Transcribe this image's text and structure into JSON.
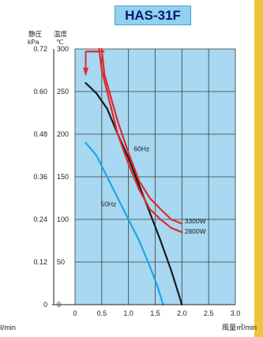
{
  "title": "HAS-31F",
  "chart_data": {
    "type": "line",
    "title": "HAS-31F",
    "y_left": {
      "header_top": "静圧",
      "header_unit": "kPa",
      "ticks": [
        0,
        0.12,
        0.24,
        0.36,
        0.48,
        0.6,
        0.72
      ],
      "tick_labels": [
        "0",
        "0.12",
        "0.24",
        "0.36",
        "0.48",
        "0.60",
        "0.72"
      ]
    },
    "y_right": {
      "header_top": "温度",
      "header_unit": "℃",
      "ticks": [
        0,
        50,
        100,
        150,
        200,
        250,
        300
      ],
      "ylim": [
        0,
        300
      ]
    },
    "x": {
      "ticks": [
        0,
        0.5,
        1.0,
        1.5,
        2.0,
        2.5,
        3.0
      ],
      "tick_labels": [
        "0",
        "0.5",
        "1.0",
        "1.5",
        "2.0",
        "2.5",
        "3.0"
      ],
      "xlim": [
        0,
        3.0
      ],
      "label": "風量㎥/min",
      "left_label": "ℓ/min"
    },
    "grid": true,
    "series": [
      {
        "name": "60Hz",
        "color": "#1a1a1a",
        "points": [
          [
            0.2,
            260
          ],
          [
            0.4,
            248
          ],
          [
            0.6,
            230
          ],
          [
            0.8,
            200
          ],
          [
            1.0,
            172
          ],
          [
            1.2,
            140
          ],
          [
            1.4,
            108
          ],
          [
            1.6,
            75
          ],
          [
            1.8,
            40
          ],
          [
            1.95,
            10
          ],
          [
            2.0,
            0
          ]
        ]
      },
      {
        "name": "50Hz",
        "color": "#1aa7e8",
        "points": [
          [
            0.2,
            190
          ],
          [
            0.4,
            175
          ],
          [
            0.6,
            150
          ],
          [
            0.8,
            125
          ],
          [
            1.0,
            100
          ],
          [
            1.2,
            75
          ],
          [
            1.4,
            45
          ],
          [
            1.55,
            20
          ],
          [
            1.65,
            0
          ]
        ]
      },
      {
        "name": "3300W",
        "color": "#e22a2a",
        "points": [
          [
            0.5,
            300
          ],
          [
            0.55,
            270
          ],
          [
            0.65,
            248
          ],
          [
            0.8,
            215
          ],
          [
            1.0,
            178
          ],
          [
            1.2,
            145
          ],
          [
            1.4,
            125
          ],
          [
            1.6,
            112
          ],
          [
            1.8,
            100
          ],
          [
            2.0,
            95
          ]
        ]
      },
      {
        "name": "2800W",
        "color": "#e22a2a",
        "points": [
          [
            0.45,
            300
          ],
          [
            0.5,
            275
          ],
          [
            0.6,
            250
          ],
          [
            0.8,
            200
          ],
          [
            1.0,
            165
          ],
          [
            1.2,
            135
          ],
          [
            1.4,
            112
          ],
          [
            1.6,
            100
          ],
          [
            1.8,
            90
          ],
          [
            2.0,
            85
          ]
        ]
      }
    ],
    "cap": {
      "color": "#e22a2a",
      "points": [
        [
          0.2,
          297
        ],
        [
          0.55,
          297
        ]
      ]
    },
    "annotations": [
      {
        "text": "60Hz",
        "x": 1.1,
        "y": 183
      },
      {
        "text": "50Hz",
        "x": 0.48,
        "y": 118
      },
      {
        "text": "3300W",
        "x": 2.05,
        "y": 98
      },
      {
        "text": "2800W",
        "x": 2.05,
        "y": 86
      }
    ]
  }
}
